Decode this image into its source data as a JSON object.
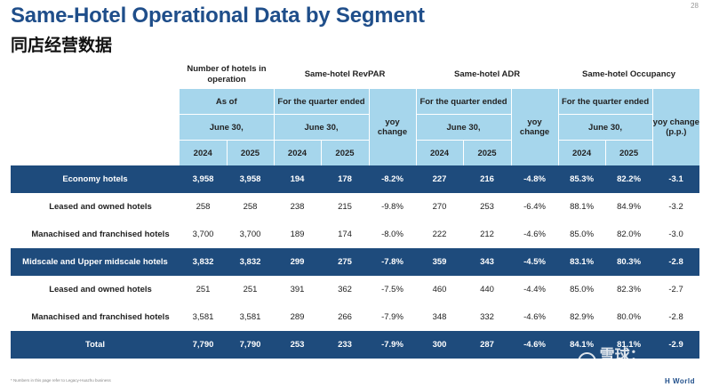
{
  "title": "Same-Hotel Operational Data by Segment",
  "subtitle": "同店经营数据",
  "page_number": "28",
  "header": {
    "num_hotels": "Number of hotels in operation",
    "revpar": "Same-hotel RevPAR",
    "adr": "Same-hotel ADR",
    "occupancy": "Same-hotel Occupancy",
    "as_of": "As of",
    "quarter_ended": "For the quarter ended",
    "june30": "June 30,",
    "yoy_change": "yoy change",
    "yoy_change_pp": "yoy change (p.p.)",
    "year_2024": "2024",
    "year_2025": "2025"
  },
  "rows": [
    {
      "label": "Economy hotels",
      "type": "segment",
      "h2024": "3,958",
      "h2025": "3,958",
      "revpar2024": "194",
      "revpar2025": "178",
      "revpar_yoy": "-8.2%",
      "adr2024": "227",
      "adr2025": "216",
      "adr_yoy": "-4.8%",
      "occ2024": "85.3%",
      "occ2025": "82.2%",
      "occ_yoy": "-3.1"
    },
    {
      "label": "Leased and owned hotels",
      "type": "sub",
      "h2024": "258",
      "h2025": "258",
      "revpar2024": "238",
      "revpar2025": "215",
      "revpar_yoy": "-9.8%",
      "adr2024": "270",
      "adr2025": "253",
      "adr_yoy": "-6.4%",
      "occ2024": "88.1%",
      "occ2025": "84.9%",
      "occ_yoy": "-3.2"
    },
    {
      "label": "Manachised and franchised hotels",
      "type": "sub",
      "h2024": "3,700",
      "h2025": "3,700",
      "revpar2024": "189",
      "revpar2025": "174",
      "revpar_yoy": "-8.0%",
      "adr2024": "222",
      "adr2025": "212",
      "adr_yoy": "-4.6%",
      "occ2024": "85.0%",
      "occ2025": "82.0%",
      "occ_yoy": "-3.0"
    },
    {
      "label": "Midscale and Upper midscale hotels",
      "type": "segment",
      "h2024": "3,832",
      "h2025": "3,832",
      "revpar2024": "299",
      "revpar2025": "275",
      "revpar_yoy": "-7.8%",
      "adr2024": "359",
      "adr2025": "343",
      "adr_yoy": "-4.5%",
      "occ2024": "83.1%",
      "occ2025": "80.3%",
      "occ_yoy": "-2.8"
    },
    {
      "label": "Leased and owned hotels",
      "type": "sub",
      "h2024": "251",
      "h2025": "251",
      "revpar2024": "391",
      "revpar2025": "362",
      "revpar_yoy": "-7.5%",
      "adr2024": "460",
      "adr2025": "440",
      "adr_yoy": "-4.4%",
      "occ2024": "85.0%",
      "occ2025": "82.3%",
      "occ_yoy": "-2.7"
    },
    {
      "label": "Manachised and franchised hotels",
      "type": "sub",
      "h2024": "3,581",
      "h2025": "3,581",
      "revpar2024": "289",
      "revpar2025": "266",
      "revpar_yoy": "-7.9%",
      "adr2024": "348",
      "adr2025": "332",
      "adr_yoy": "-4.6%",
      "occ2024": "82.9%",
      "occ2025": "80.0%",
      "occ_yoy": "-2.8"
    },
    {
      "label": "Total",
      "type": "segment",
      "h2024": "7,790",
      "h2025": "7,790",
      "revpar2024": "253",
      "revpar2025": "233",
      "revpar_yoy": "-7.9%",
      "adr2024": "300",
      "adr2025": "287",
      "adr_yoy": "-4.6%",
      "occ2024": "84.1%",
      "occ2025": "81.1%",
      "occ_yoy": "-2.9"
    }
  ],
  "footnote": "* Numbers in this page refer to Legacy-Huazhu business",
  "brand": "H World",
  "watermark": "雪球：qiutang",
  "colors": {
    "title": "#1f4e8a",
    "segment_row": "#1e4b7c",
    "header_blue": "#a6d6ec"
  }
}
